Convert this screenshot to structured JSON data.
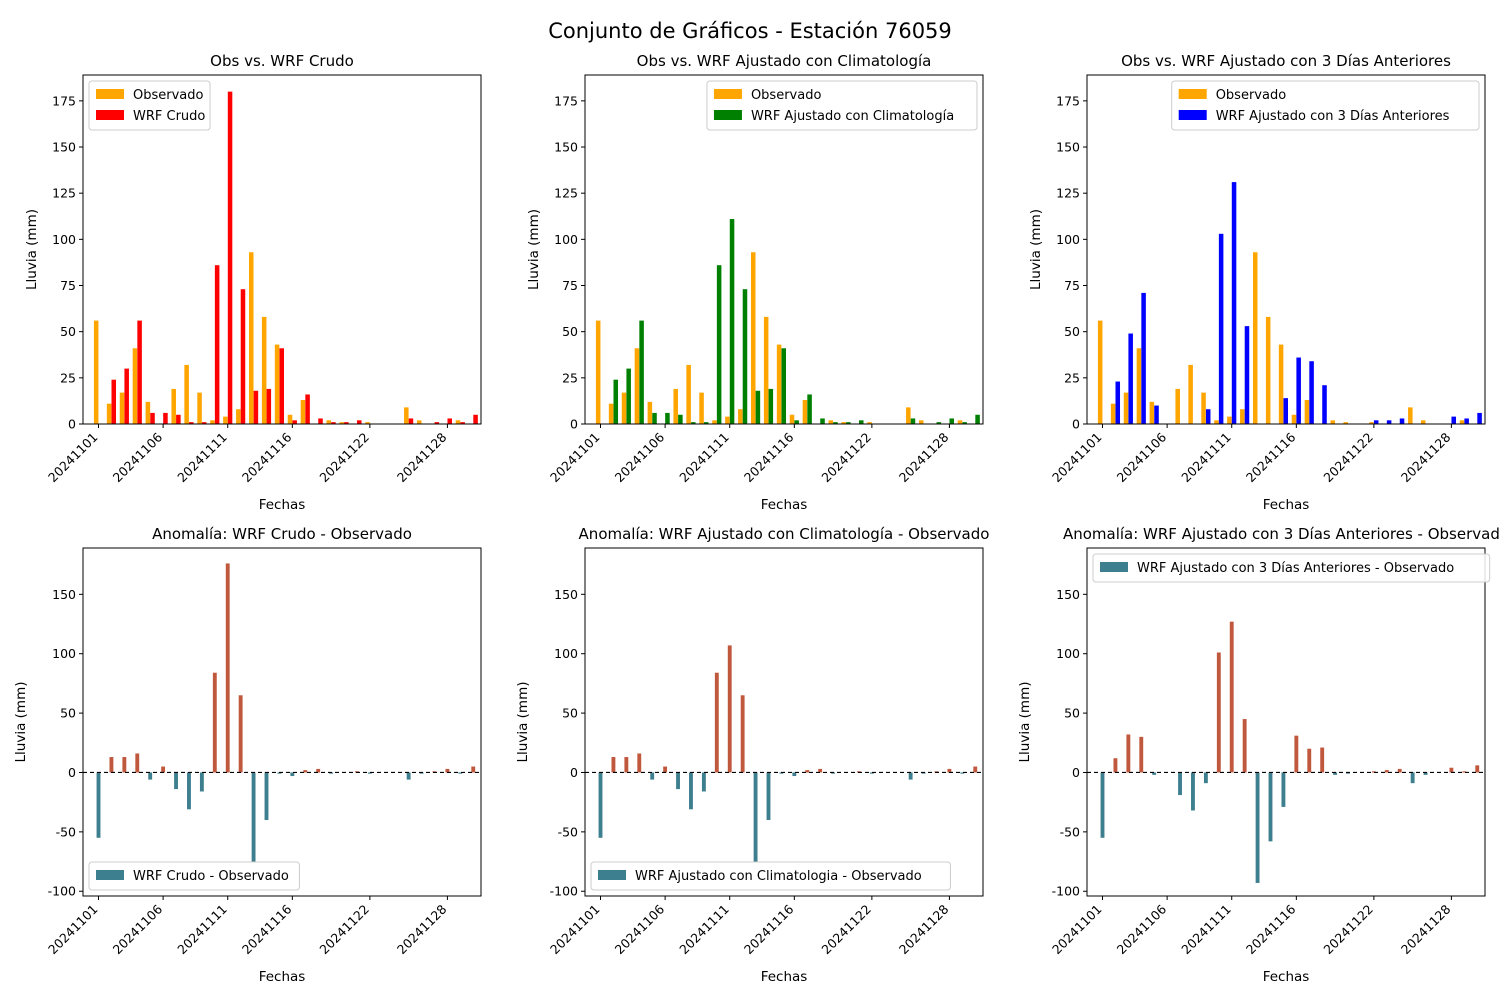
{
  "figure": {
    "title": "Conjunto de Gráficos - Estación 76059"
  },
  "colors": {
    "observed": "#ffa500",
    "wrf_raw": "#ff0000",
    "wrf_clim": "#008000",
    "wrf_3d": "#0000ff",
    "anomaly_pos": "#c0583d",
    "anomaly_neg": "#3e7f8f",
    "zero_line": "#000000"
  },
  "dates": [
    "20241101",
    "20241102",
    "20241103",
    "20241104",
    "20241105",
    "20241106",
    "20241107",
    "20241108",
    "20241109",
    "20241110",
    "20241111",
    "20241112",
    "20241113",
    "20241114",
    "20241115",
    "20241116",
    "20241117",
    "20241118",
    "20241119",
    "20241120",
    "20241121",
    "20241122",
    "20241123",
    "20241124",
    "20241125",
    "20241126",
    "20241127",
    "20241128",
    "20241129",
    "20241130"
  ],
  "chart_data": [
    {
      "type": "bar",
      "title": "Obs vs. WRF Crudo",
      "xlabel": "Fechas",
      "ylabel": "Lluvia (mm)",
      "ylim": [
        0,
        189
      ],
      "yticks": [
        0,
        25,
        50,
        75,
        100,
        125,
        150,
        175
      ],
      "xticks": [
        "20241101",
        "20241106",
        "20241111",
        "20241116",
        "20241122",
        "20241128"
      ],
      "legend_loc": "upper-left",
      "series": [
        {
          "name": "Observado",
          "color_key": "observed",
          "values": [
            56,
            11,
            17,
            41,
            12,
            0,
            19,
            32,
            17,
            2,
            4,
            8,
            93,
            58,
            43,
            5,
            13,
            0,
            2,
            1,
            0,
            1,
            0,
            0,
            9,
            2,
            0,
            0,
            2,
            0
          ]
        },
        {
          "name": "WRF Crudo",
          "color_key": "wrf_raw",
          "values": [
            0,
            24,
            30,
            56,
            6,
            6,
            5,
            1,
            1,
            86,
            180,
            73,
            18,
            19,
            41,
            2,
            16,
            3,
            1,
            1,
            2,
            0,
            0,
            0,
            3,
            0,
            1,
            3,
            1,
            5
          ]
        }
      ]
    },
    {
      "type": "bar",
      "title": "Obs vs. WRF Ajustado con Climatología",
      "xlabel": "Fechas",
      "ylabel": "Lluvia (mm)",
      "ylim": [
        0,
        189
      ],
      "yticks": [
        0,
        25,
        50,
        75,
        100,
        125,
        150,
        175
      ],
      "xticks": [
        "20241101",
        "20241106",
        "20241111",
        "20241116",
        "20241122",
        "20241128"
      ],
      "legend_loc": "upper-right",
      "series": [
        {
          "name": "Observado",
          "color_key": "observed",
          "values": [
            56,
            11,
            17,
            41,
            12,
            0,
            19,
            32,
            17,
            2,
            4,
            8,
            93,
            58,
            43,
            5,
            13,
            0,
            2,
            1,
            0,
            1,
            0,
            0,
            9,
            2,
            0,
            0,
            2,
            0
          ]
        },
        {
          "name": "WRF Ajustado con Climatología",
          "color_key": "wrf_clim",
          "values": [
            0,
            24,
            30,
            56,
            6,
            6,
            5,
            1,
            1,
            86,
            111,
            73,
            18,
            19,
            41,
            2,
            16,
            3,
            1,
            1,
            2,
            0,
            0,
            0,
            3,
            0,
            1,
            3,
            1,
            5
          ]
        }
      ]
    },
    {
      "type": "bar",
      "title": "Obs vs. WRF Ajustado con 3 Días Anteriores",
      "xlabel": "Fechas",
      "ylabel": "Lluvia (mm)",
      "ylim": [
        0,
        189
      ],
      "yticks": [
        0,
        25,
        50,
        75,
        100,
        125,
        150,
        175
      ],
      "xticks": [
        "20241101",
        "20241106",
        "20241111",
        "20241116",
        "20241122",
        "20241128"
      ],
      "legend_loc": "upper-right",
      "series": [
        {
          "name": "Observado",
          "color_key": "observed",
          "values": [
            56,
            11,
            17,
            41,
            12,
            0,
            19,
            32,
            17,
            2,
            4,
            8,
            93,
            58,
            43,
            5,
            13,
            0,
            2,
            1,
            0,
            1,
            0,
            0,
            9,
            2,
            0,
            0,
            2,
            0
          ]
        },
        {
          "name": "WRF Ajustado con 3 Días Anteriores",
          "color_key": "wrf_3d",
          "values": [
            0,
            23,
            49,
            71,
            10,
            0,
            0,
            0,
            8,
            103,
            131,
            53,
            0,
            0,
            14,
            36,
            34,
            21,
            0,
            0,
            0,
            2,
            2,
            3,
            0,
            0,
            0,
            4,
            3,
            6
          ]
        }
      ]
    },
    {
      "type": "bar",
      "title": "Anomalía: WRF Crudo - Observado",
      "xlabel": "Fechas",
      "ylabel": "Lluvia (mm)",
      "ylim": [
        -104,
        189
      ],
      "yticks": [
        -100,
        -50,
        0,
        50,
        100,
        150
      ],
      "xticks": [
        "20241101",
        "20241106",
        "20241111",
        "20241116",
        "20241122",
        "20241128"
      ],
      "legend_loc": "lower-left",
      "series": [
        {
          "name": "WRF Crudo - Observado",
          "sign_colored": true,
          "values": [
            -55,
            13,
            13,
            16,
            -6,
            5,
            -14,
            -31,
            -16,
            84,
            176,
            65,
            -75,
            -40,
            -1,
            -3,
            2,
            3,
            -1,
            0,
            1,
            -1,
            0,
            0,
            -6,
            -1,
            1,
            3,
            -1,
            5
          ]
        }
      ]
    },
    {
      "type": "bar",
      "title": "Anomalía: WRF Ajustado con Climatología - Observado",
      "xlabel": "Fechas",
      "ylabel": "Lluvia (mm)",
      "ylim": [
        -104,
        189
      ],
      "yticks": [
        -100,
        -50,
        0,
        50,
        100,
        150
      ],
      "xticks": [
        "20241101",
        "20241106",
        "20241111",
        "20241116",
        "20241122",
        "20241128"
      ],
      "legend_loc": "lower-left",
      "series": [
        {
          "name": "WRF Ajustado con Climatologia - Observado",
          "sign_colored": true,
          "values": [
            -55,
            13,
            13,
            16,
            -6,
            5,
            -14,
            -31,
            -16,
            84,
            107,
            65,
            -75,
            -40,
            -1,
            -3,
            2,
            3,
            -1,
            0,
            1,
            -1,
            0,
            0,
            -6,
            -1,
            1,
            3,
            -1,
            5
          ]
        }
      ]
    },
    {
      "type": "bar",
      "title": "Anomalía: WRF Ajustado con 3 Días Anteriores - Observado",
      "xlabel": "Fechas",
      "ylabel": "Lluvia (mm)",
      "ylim": [
        -104,
        189
      ],
      "yticks": [
        -100,
        -50,
        0,
        50,
        100,
        150
      ],
      "xticks": [
        "20241101",
        "20241106",
        "20241111",
        "20241116",
        "20241122",
        "20241128"
      ],
      "legend_loc": "upper-left",
      "series": [
        {
          "name": "WRF Ajustado con 3 Días Anteriores - Observado",
          "sign_colored": true,
          "values": [
            -55,
            12,
            32,
            30,
            -2,
            0,
            -19,
            -32,
            -9,
            101,
            127,
            45,
            -93,
            -58,
            -29,
            31,
            20,
            21,
            -2,
            -1,
            0,
            1,
            2,
            3,
            -9,
            -2,
            0,
            4,
            1,
            6
          ]
        }
      ]
    }
  ]
}
